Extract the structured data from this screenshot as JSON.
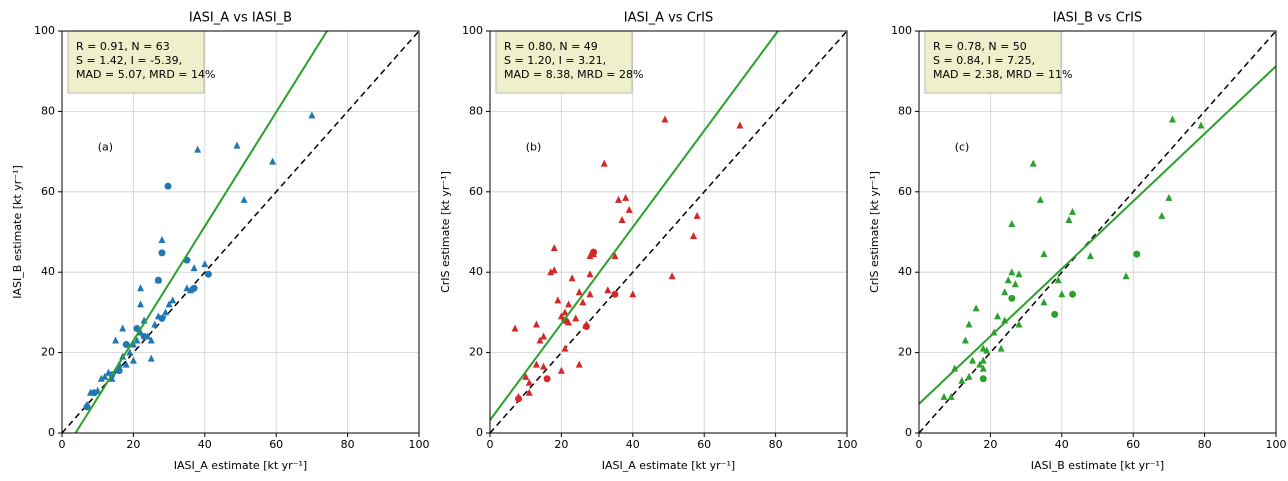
{
  "chart_data": [
    {
      "type": "scatter",
      "title": "IASI_A vs IASI_B",
      "xlabel": "IASI_A estimate [kt yr⁻¹]",
      "ylabel": "IASI_B estimate [kt yr⁻¹]",
      "annotations": [
        "R = 0.91, N = 63",
        "S = 1.42, I = -5.39,",
        "MAD = 5.07, MRD = 14%"
      ],
      "panel_label": "(a)",
      "series": [
        {
          "marker": "triangle",
          "color": "#1f77b4",
          "x": [
            7,
            8,
            10,
            11,
            12,
            13,
            14,
            15,
            16,
            17,
            17,
            18,
            19,
            20,
            20,
            21,
            22,
            22,
            22,
            23,
            24,
            25,
            25,
            26,
            27,
            27,
            28,
            29,
            30,
            31,
            35,
            36,
            37,
            38,
            40,
            49,
            51,
            59,
            70
          ],
          "values": [
            7,
            10,
            10.5,
            13.5,
            14,
            15,
            13.5,
            23,
            17,
            19,
            26,
            17,
            20,
            18,
            22,
            23,
            25,
            32,
            36,
            28,
            24,
            23,
            18.5,
            27,
            29,
            38,
            48,
            30,
            32,
            33,
            36,
            35.5,
            41,
            70.5,
            42,
            71.5,
            58,
            67.5,
            79
          ]
        },
        {
          "marker": "circle",
          "color": "#1f77b4",
          "x": [
            7,
            9,
            14,
            16,
            18,
            21,
            23,
            27,
            28,
            28,
            29.7,
            35,
            37,
            41
          ],
          "values": [
            6.5,
            10,
            14.5,
            15.5,
            22,
            26,
            24,
            38,
            44.8,
            28.5,
            61.4,
            43,
            36,
            39.5
          ]
        }
      ],
      "fit": {
        "slope": 1.42,
        "intercept": -5.39,
        "color": "#2ca02c"
      },
      "identity_line": true,
      "xlim": [
        0,
        100
      ],
      "ylim": [
        0,
        100
      ],
      "xticks": [
        0,
        20,
        40,
        60,
        80,
        100
      ],
      "yticks": [
        0,
        20,
        40,
        60,
        80,
        100
      ],
      "grid": true
    },
    {
      "type": "scatter",
      "title": "IASI_A vs CrIS",
      "xlabel": "IASI_A estimate [kt yr⁻¹]",
      "ylabel": "CrIS estimate [kt yr⁻¹]",
      "annotations": [
        "R = 0.80, N = 49",
        "S = 1.20, I = 3.21,",
        "MAD = 8.38, MRD = 28%"
      ],
      "panel_label": "(b)",
      "series": [
        {
          "marker": "triangle",
          "color": "#d62728",
          "x": [
            7,
            8,
            10,
            11,
            11,
            13,
            13,
            14,
            15,
            15,
            17,
            18,
            18,
            19,
            20,
            20,
            21,
            21,
            22,
            22,
            23,
            24,
            25,
            25,
            26,
            27,
            28,
            28,
            28,
            29,
            32,
            33,
            35,
            36,
            37,
            38,
            39,
            40,
            49,
            51,
            57,
            58,
            70
          ],
          "values": [
            26,
            9,
            14,
            12.5,
            10,
            27,
            17,
            23,
            24,
            16.5,
            40,
            40.5,
            46,
            33,
            15.5,
            29,
            30,
            21,
            32,
            27.5,
            38.5,
            28.5,
            35,
            17,
            32.5,
            27,
            39.5,
            34.5,
            44,
            44.5,
            67,
            35.5,
            44,
            58,
            53,
            58.5,
            55.5,
            34.5,
            78,
            39,
            49,
            54,
            76.5
          ]
        },
        {
          "marker": "circle",
          "color": "#d62728",
          "x": [
            8,
            16,
            21,
            27,
            29,
            35
          ],
          "values": [
            8.5,
            13.5,
            28,
            26.5,
            45,
            34.5
          ]
        }
      ],
      "fit": {
        "slope": 1.2,
        "intercept": 3.21,
        "color": "#2ca02c"
      },
      "identity_line": true,
      "xlim": [
        0,
        100
      ],
      "ylim": [
        0,
        100
      ],
      "xticks": [
        0,
        20,
        40,
        60,
        80,
        100
      ],
      "yticks": [
        0,
        20,
        40,
        60,
        80,
        100
      ],
      "grid": true
    },
    {
      "type": "scatter",
      "title": "IASI_B vs CrIS",
      "xlabel": "IASI_B estimate [kt yr⁻¹]",
      "ylabel": "CrIS estimate [kt yr⁻¹]",
      "annotations": [
        "R = 0.78, N = 50",
        "S = 0.84, I = 7.25,",
        "MAD = 2.38, MRD = 11%"
      ],
      "panel_label": "(c)",
      "series": [
        {
          "marker": "triangle",
          "color": "#2ca02c",
          "x": [
            7,
            9,
            10,
            12,
            13,
            14,
            14,
            15,
            16,
            17,
            18,
            18,
            18,
            19,
            21,
            22,
            23,
            24,
            24,
            25,
            26,
            26,
            27,
            28,
            28,
            32,
            34,
            35,
            35,
            39,
            40,
            42,
            43,
            48,
            58,
            68,
            70,
            71,
            79
          ],
          "values": [
            9,
            9,
            16,
            13,
            23,
            27,
            14,
            18,
            31,
            17,
            21,
            16,
            18,
            20.5,
            25,
            29,
            21,
            35,
            28,
            38,
            52,
            40,
            37,
            39.5,
            27,
            67,
            58,
            44.5,
            32.5,
            38,
            34.5,
            53,
            55,
            44,
            39,
            54,
            58.5,
            78,
            76.5
          ]
        },
        {
          "marker": "circle",
          "color": "#2ca02c",
          "x": [
            18,
            26,
            38,
            43,
            61
          ],
          "values": [
            13.5,
            33.5,
            29.5,
            34.5,
            44.5
          ]
        }
      ],
      "fit": {
        "slope": 0.84,
        "intercept": 7.25,
        "color": "#2ca02c"
      },
      "identity_line": true,
      "xlim": [
        0,
        100
      ],
      "ylim": [
        0,
        100
      ],
      "xticks": [
        0,
        20,
        40,
        60,
        80,
        100
      ],
      "yticks": [
        0,
        20,
        40,
        60,
        80,
        100
      ],
      "grid": true
    }
  ]
}
